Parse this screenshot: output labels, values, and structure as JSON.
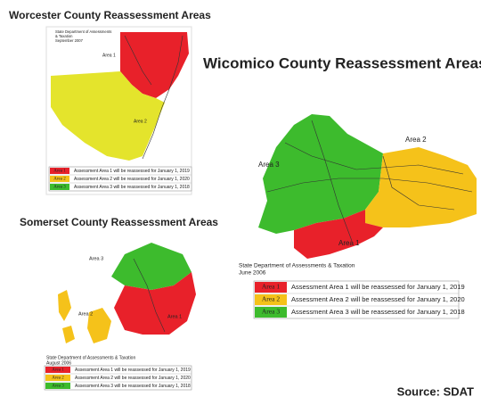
{
  "maps": [
    {
      "title": "Worcester County Reassessment Areas",
      "agency": [
        "State Department of Assessments",
        "& Taxation",
        "September 2007"
      ],
      "area_labels": [
        "Area 1",
        "Area 2"
      ],
      "legend": [
        {
          "key": "Area 1",
          "text": "Assessment Area 1 will be reassessed for January 1, 2019"
        },
        {
          "key": "Area 2",
          "text": "Assessment Area 2 will be reassessed for January 1, 2020"
        },
        {
          "key": "Area 3",
          "text": "Assessment Area 3 will be reassessed for January 1, 2018"
        }
      ]
    },
    {
      "title": "Wicomico County Reassessment Areas",
      "agency": [
        "State Department of Assessments & Taxation",
        "June 2006"
      ],
      "area_labels": [
        "Area 2",
        "Area 3",
        "Area 1"
      ],
      "legend": [
        {
          "key": "Area 1",
          "text": "Assessment Area 1 will be reassessed for January 1, 2019"
        },
        {
          "key": "Area 2",
          "text": "Assessment Area 2 will be reassessed for January 1, 2020"
        },
        {
          "key": "Area 3",
          "text": "Assessment Area 3 will be reassessed for January 1, 2018"
        }
      ]
    },
    {
      "title": "Somerset County Reassessment Areas",
      "agency": [
        "State Department of Assessments & Taxation",
        "August 2006"
      ],
      "area_labels": [
        "Area 3",
        "Area 2",
        "Area 1"
      ],
      "legend": [
        {
          "key": "Area 1",
          "text": "Assessment Area 1 will be reassessed for January 1, 2019"
        },
        {
          "key": "Area 2",
          "text": "Assessment Area 2 will be reassessed for January 1, 2020"
        },
        {
          "key": "Area 3",
          "text": "Assessment Area 3 will be reassessed for January 1, 2018"
        }
      ]
    }
  ],
  "source": "Source: SDAT"
}
